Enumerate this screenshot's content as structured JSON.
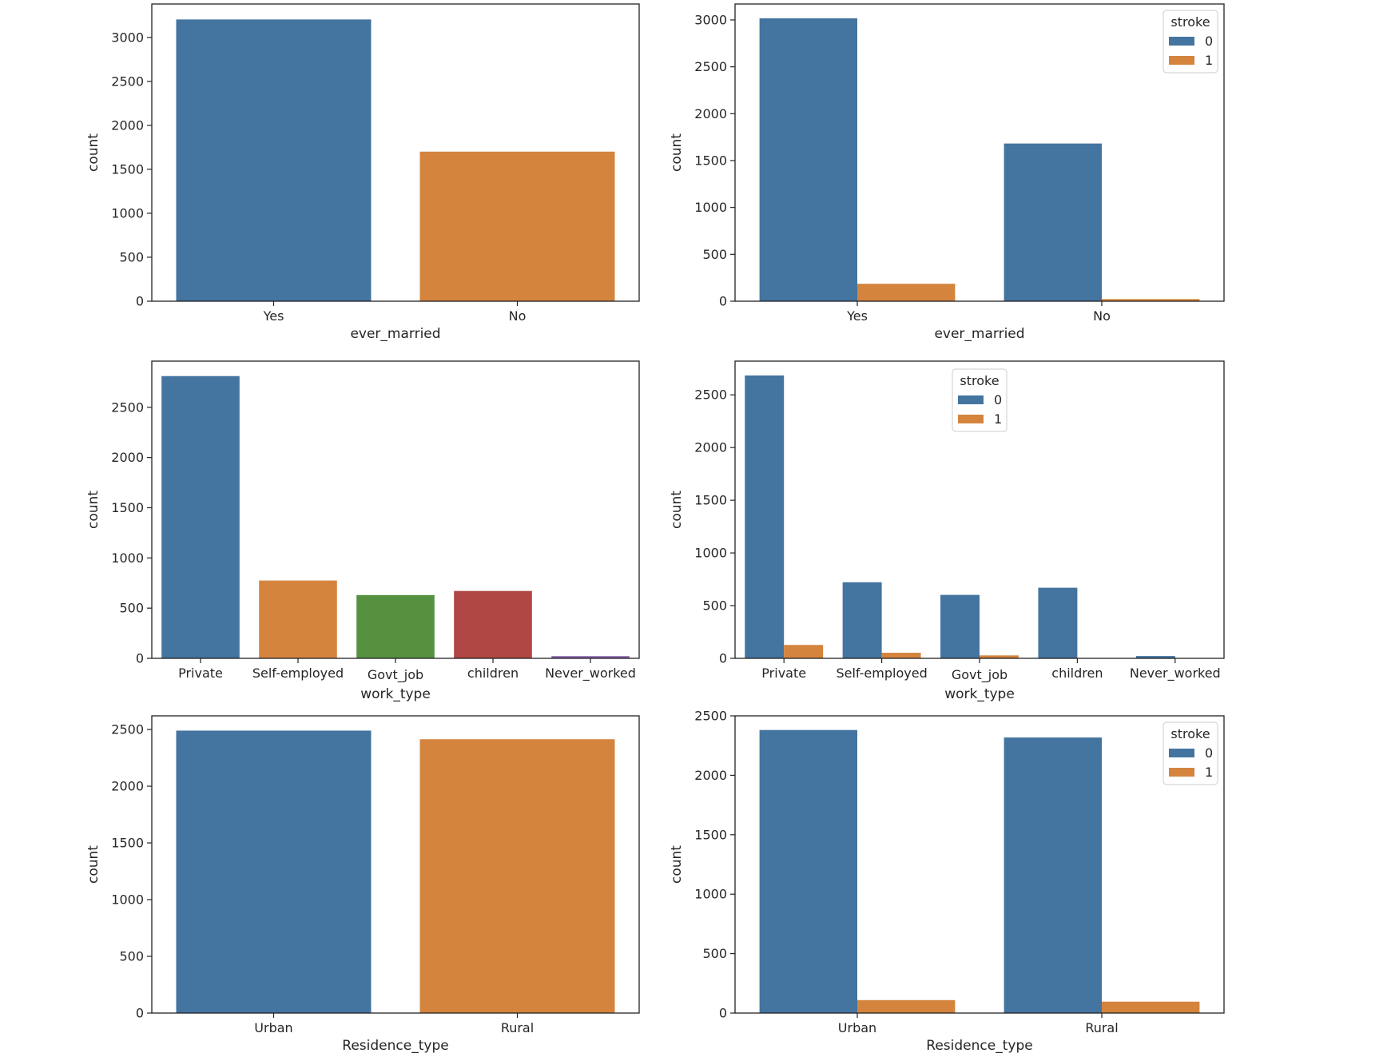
{
  "chart_data": [
    {
      "id": "ever-married-count",
      "type": "bar",
      "xlabel": "ever_married",
      "ylabel": "count",
      "categories": [
        "Yes",
        "No"
      ],
      "values": [
        3204,
        1701
      ],
      "colors": [
        "#4474a0",
        "#d5843e"
      ],
      "ylim": [
        0,
        3380
      ],
      "yticks": [
        0,
        500,
        1000,
        1500,
        2000,
        2500,
        3000
      ],
      "legend": null
    },
    {
      "id": "ever-married-by-stroke",
      "type": "bar",
      "xlabel": "ever_married",
      "ylabel": "count",
      "categories": [
        "Yes",
        "No"
      ],
      "series": [
        {
          "name": "0",
          "color": "#4474a0",
          "values": [
            3018,
            1682
          ]
        },
        {
          "name": "1",
          "color": "#d5843e",
          "values": [
            186,
            23
          ]
        }
      ],
      "ylim": [
        0,
        3170
      ],
      "yticks": [
        0,
        500,
        1000,
        1500,
        2000,
        2500,
        3000
      ],
      "legend": {
        "title": "stroke",
        "position": "top-right"
      }
    },
    {
      "id": "work-type-count",
      "type": "bar",
      "xlabel": "work_type",
      "ylabel": "count",
      "categories": [
        "Private",
        "Self-employed",
        "Govt_job",
        "children",
        "Never_worked"
      ],
      "values": [
        2811,
        775,
        630,
        671,
        22
      ],
      "colors": [
        "#4474a0",
        "#d5843e",
        "#55913f",
        "#b04744",
        "#8560aa"
      ],
      "ylim": [
        0,
        2960
      ],
      "yticks": [
        0,
        500,
        1000,
        1500,
        2000,
        2500
      ],
      "legend": null
    },
    {
      "id": "work-type-by-stroke",
      "type": "bar",
      "xlabel": "work_type",
      "ylabel": "count",
      "categories": [
        "Private",
        "Self-employed",
        "Govt_job",
        "children",
        "Never_worked"
      ],
      "series": [
        {
          "name": "0",
          "color": "#4474a0",
          "values": [
            2684,
            722,
            602,
            670,
            22
          ]
        },
        {
          "name": "1",
          "color": "#d5843e",
          "values": [
            127,
            53,
            28,
            1,
            0
          ]
        }
      ],
      "ylim": [
        0,
        2820
      ],
      "yticks": [
        0,
        500,
        1000,
        1500,
        2000,
        2500
      ],
      "legend": {
        "title": "stroke",
        "position": "top-center"
      }
    },
    {
      "id": "residence-type-count",
      "type": "bar",
      "xlabel": "Residence_type",
      "ylabel": "count",
      "categories": [
        "Urban",
        "Rural"
      ],
      "values": [
        2490,
        2414
      ],
      "colors": [
        "#4474a0",
        "#d5843e"
      ],
      "ylim": [
        0,
        2620
      ],
      "yticks": [
        0,
        500,
        1000,
        1500,
        2000,
        2500
      ],
      "legend": null
    },
    {
      "id": "residence-type-by-stroke",
      "type": "bar",
      "xlabel": "Residence_type",
      "ylabel": "count",
      "categories": [
        "Urban",
        "Rural"
      ],
      "series": [
        {
          "name": "0",
          "color": "#4474a0",
          "values": [
            2381,
            2318
          ]
        },
        {
          "name": "1",
          "color": "#d5843e",
          "values": [
            109,
            96
          ]
        }
      ],
      "ylim": [
        0,
        2500
      ],
      "yticks": [
        0,
        500,
        1000,
        1500,
        2000,
        2500
      ],
      "legend": {
        "title": "stroke",
        "position": "top-right"
      }
    }
  ]
}
